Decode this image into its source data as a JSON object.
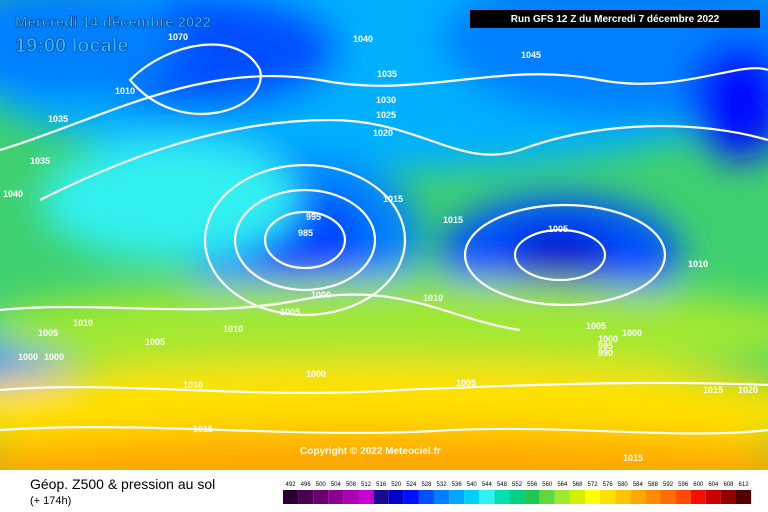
{
  "header": {
    "date": "Mercredi 14 décembre 2022",
    "time": "19:00 locale",
    "run": "Run GFS 12 Z du Mercredi 7 décembre 2022"
  },
  "copyright": "Copyright © 2022 Meteociel.fr",
  "footer": {
    "title": "Géop. Z500 & pression au sol",
    "lead": "(+ 174h)"
  },
  "isobar_labels": [
    "1070",
    "1010",
    "1040",
    "1045",
    "1035",
    "1030",
    "1025",
    "1020",
    "1035",
    "1035",
    "1040",
    "1015",
    "1015",
    "995",
    "985",
    "1005",
    "1010",
    "1000",
    "1005",
    "1010",
    "1010",
    "1010",
    "1005",
    "1005",
    "1000",
    "1000",
    "1000",
    "1005",
    "1000",
    "1000",
    "995",
    "990",
    "1010",
    "1005",
    "1015",
    "1020",
    "1015",
    "1015"
  ],
  "legend": {
    "values": [
      492,
      496,
      500,
      504,
      508,
      512,
      516,
      520,
      524,
      528,
      532,
      536,
      540,
      544,
      548,
      552,
      556,
      560,
      564,
      568,
      572,
      576,
      580,
      584,
      588,
      592,
      596,
      600,
      604,
      608,
      612
    ],
    "colors": [
      "#2a0030",
      "#4a0050",
      "#6a0070",
      "#8a0090",
      "#aa00b0",
      "#c800d0",
      "#1a0a90",
      "#0000c8",
      "#0010ff",
      "#0050ff",
      "#0080ff",
      "#00a8ff",
      "#00d0ff",
      "#30f0f0",
      "#00e0b0",
      "#00d080",
      "#20c850",
      "#60d840",
      "#a0e830",
      "#d0f000",
      "#ffff00",
      "#ffe000",
      "#ffc400",
      "#ffa800",
      "#ff8c00",
      "#ff6c00",
      "#ff4800",
      "#f01000",
      "#c80000",
      "#900000",
      "#500000"
    ]
  }
}
